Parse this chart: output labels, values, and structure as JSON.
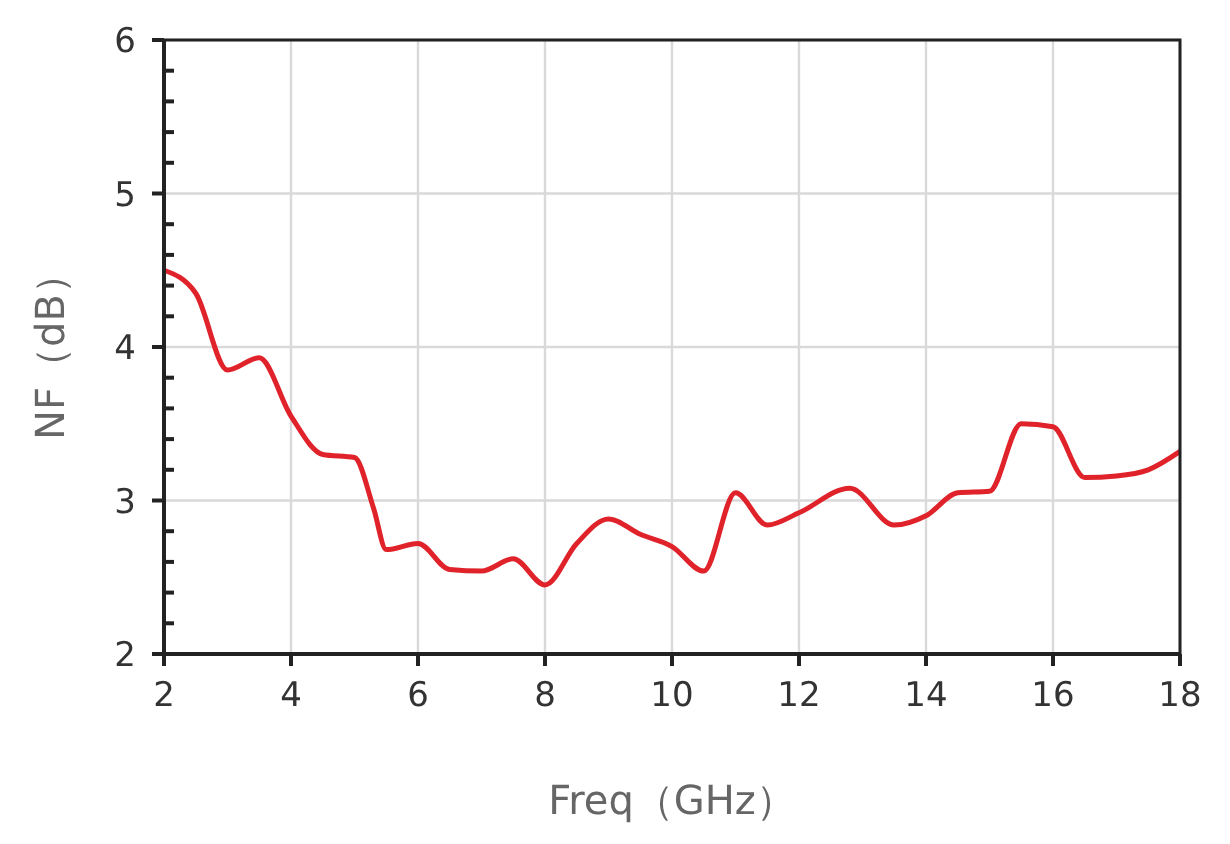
{
  "chart_data": {
    "type": "line",
    "xlabel": "Freq（GHz）",
    "ylabel": "NF（dB）",
    "x": [
      2,
      2.5,
      3,
      3.5,
      4,
      4.5,
      5,
      5.3,
      5.5,
      6,
      6.5,
      7,
      7.5,
      8,
      8.5,
      9,
      9.5,
      10,
      10.5,
      11,
      11.5,
      12,
      12.8,
      13.5,
      14,
      14.5,
      15,
      15.5,
      16,
      16.5,
      17,
      17.5,
      18
    ],
    "series": [
      {
        "color": "#e0232a",
        "values": [
          4.5,
          4.35,
          3.85,
          3.93,
          3.55,
          3.3,
          3.28,
          2.95,
          2.68,
          2.72,
          2.55,
          2.54,
          2.62,
          2.45,
          2.72,
          2.88,
          2.78,
          2.7,
          2.54,
          3.05,
          2.84,
          2.92,
          3.08,
          2.84,
          2.9,
          3.05,
          3.06,
          3.5,
          3.48,
          3.15,
          3.16,
          3.2,
          3.32
        ]
      }
    ],
    "xlim": [
      2,
      18
    ],
    "xticks": [
      2,
      4,
      6,
      8,
      10,
      12,
      14,
      16,
      18
    ],
    "ylim": [
      2,
      6
    ],
    "yticks": [
      2,
      {
        "value": 2.2,
        "label": null
      },
      {
        "value": 2.4,
        "label": null
      },
      {
        "value": 2.6,
        "label": null
      },
      {
        "value": 2.8,
        "label": null
      },
      3,
      {
        "value": 3.2,
        "label": null
      },
      {
        "value": 3.4,
        "label": null
      },
      {
        "value": 3.6,
        "label": null
      },
      {
        "value": 3.8,
        "label": null
      },
      4,
      {
        "value": 4.2,
        "label": null
      },
      {
        "value": 4.4,
        "label": null
      },
      {
        "value": 4.6,
        "label": null
      },
      {
        "value": 4.8,
        "label": null
      },
      5,
      {
        "value": 5.2,
        "label": null
      },
      {
        "value": 5.4,
        "label": null
      },
      {
        "value": 5.6,
        "label": null
      },
      {
        "value": 5.8,
        "label": null
      },
      6
    ],
    "grid": true,
    "marker": "none",
    "line_style": "solid"
  }
}
